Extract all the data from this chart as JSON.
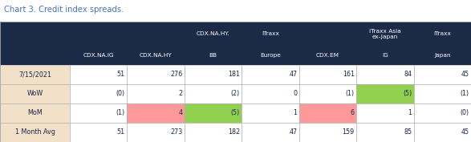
{
  "title": "Chart 3. Credit index spreads.",
  "title_color": "#4472c4",
  "header_bg": "#1b2a47",
  "header_text_color": "#ffffff",
  "row_label_bg": "#f2e0c8",
  "row_label_text_color": "#1b2a47",
  "cell_text_color": "#1b2a47",
  "green_bg": "#92d050",
  "red_bg": "#ff9999",
  "border_color": "#aaaaaa",
  "col_headers_top": [
    "",
    "",
    "CDX.NA.HY.",
    "iTraxx",
    "",
    "iTraxx Asia\nex-Japan",
    "iTraxx"
  ],
  "col_headers_bot": [
    "CDX.NA.IG",
    "CDX.NA.HY",
    "BB",
    "Europe",
    "CDX.EM",
    "IG",
    "Japan"
  ],
  "rows": [
    {
      "label": "7/15/2021",
      "values": [
        "51",
        "276",
        "181",
        "47",
        "161",
        "84",
        "45"
      ],
      "colors": [
        "#ffffff",
        "#ffffff",
        "#ffffff",
        "#ffffff",
        "#ffffff",
        "#ffffff",
        "#ffffff"
      ]
    },
    {
      "label": "WoW",
      "values": [
        "(0)",
        "2",
        "(2)",
        "0",
        "(1)",
        "(5)",
        "(1)"
      ],
      "colors": [
        "#ffffff",
        "#ffffff",
        "#ffffff",
        "#ffffff",
        "#ffffff",
        "#92d050",
        "#ffffff"
      ]
    },
    {
      "label": "MoM",
      "values": [
        "(1)",
        "4",
        "(5)",
        "1",
        "6",
        "1",
        "(0)"
      ],
      "colors": [
        "#ffffff",
        "#ff9999",
        "#92d050",
        "#ffffff",
        "#ff9999",
        "#ffffff",
        "#ffffff"
      ]
    },
    {
      "label": "1 Month Avg",
      "values": [
        "51",
        "273",
        "182",
        "47",
        "159",
        "85",
        "45"
      ],
      "colors": [
        "#ffffff",
        "#ffffff",
        "#ffffff",
        "#ffffff",
        "#ffffff",
        "#ffffff",
        "#ffffff"
      ]
    }
  ],
  "figwidth": 5.87,
  "figheight": 1.77,
  "dpi": 100
}
